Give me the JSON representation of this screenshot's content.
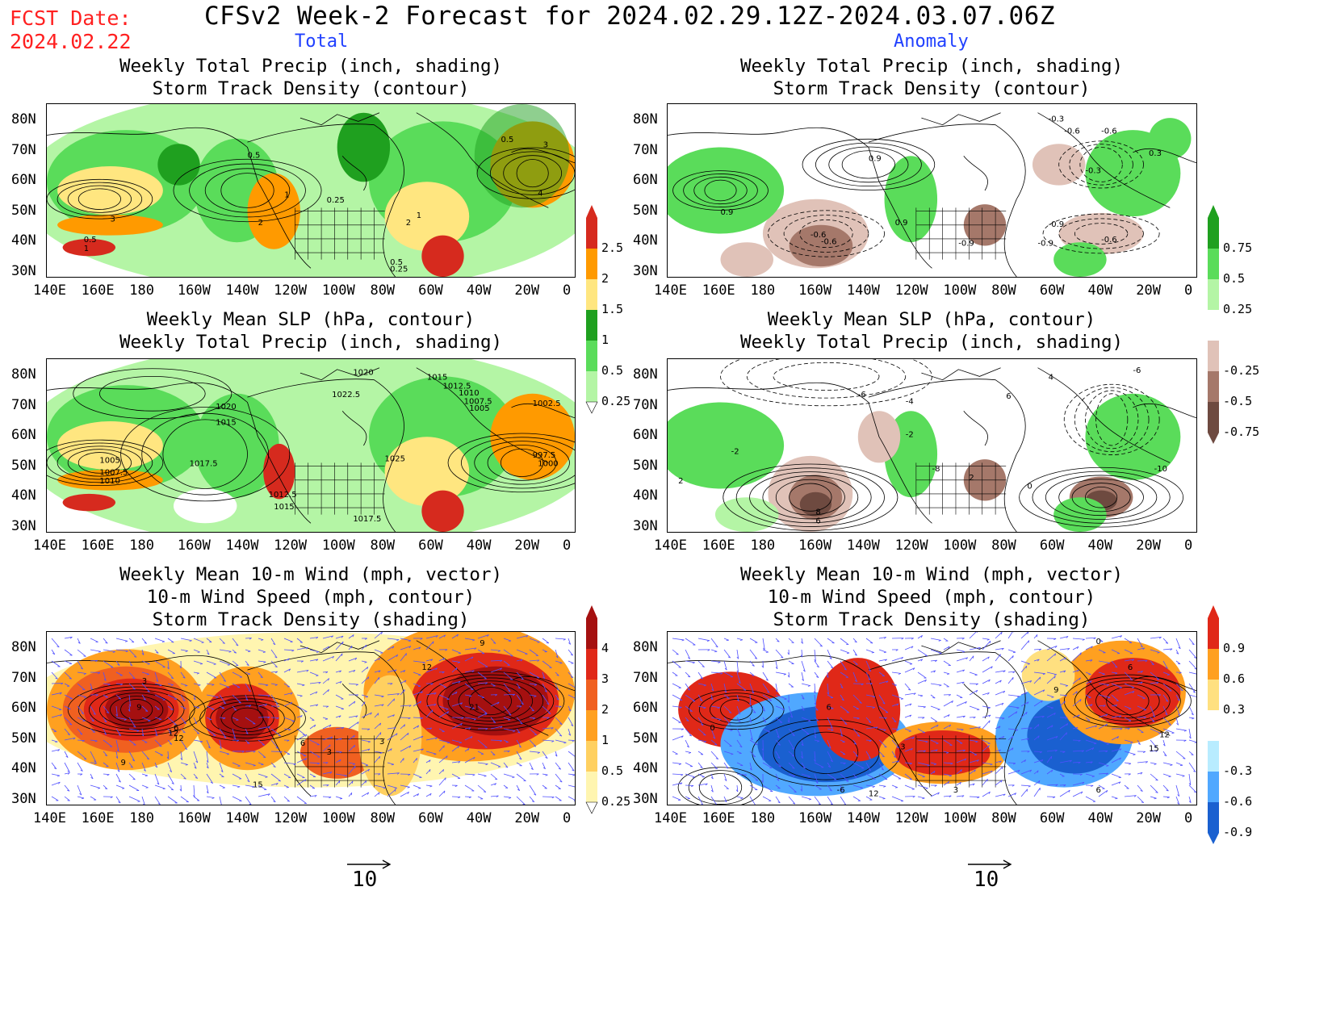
{
  "header": {
    "fcst_label": "FCST Date:",
    "fcst_date": "2024.02.22",
    "title": "CFSv2 Week-2 Forecast for 2024.02.29.12Z-2024.03.07.06Z",
    "left_column": "Total",
    "right_column": "Anomaly"
  },
  "axes": {
    "lon_labels": [
      "140E",
      "160E",
      "180",
      "160W",
      "140W",
      "120W",
      "100W",
      "80W",
      "60W",
      "40W",
      "20W",
      "0"
    ],
    "lat_labels": [
      "80N",
      "70N",
      "60N",
      "50N",
      "40N",
      "30N"
    ]
  },
  "panels": {
    "p1": {
      "l1": "Weekly Total Precip (inch, shading)",
      "l2": "Storm Track Density (contour)"
    },
    "p2": {
      "l1": "Weekly Total Precip (inch, shading)",
      "l2": "Storm Track Density (contour)"
    },
    "p3": {
      "l1": "Weekly Mean SLP (hPa, contour)",
      "l2": "Weekly Total Precip (inch, shading)"
    },
    "p4": {
      "l1": "Weekly Mean SLP (hPa, contour)",
      "l2": "Weekly Total Precip (inch, shading)"
    },
    "p5": {
      "l1": "Weekly Mean 10-m Wind (mph, vector)",
      "l2": "10-m Wind Speed (mph, contour)",
      "l3": "Storm Track Density (shading)"
    },
    "p6": {
      "l1": "Weekly Mean 10-m Wind (mph, vector)",
      "l2": "10-m Wind Speed (mph, contour)",
      "l3": "Storm Track Density (shading)"
    }
  },
  "colorbars": {
    "precip_total": {
      "labels": [
        "2.5",
        "2",
        "1.5",
        "1",
        "0.5",
        "0.25"
      ],
      "colors": [
        "#d62a1e",
        "#ff9a00",
        "#ffe680",
        "#1fa01f",
        "#5adc5a",
        "#b4f5a5"
      ]
    },
    "precip_anom": {
      "labels": [
        "0.75",
        "0.5",
        "0.25",
        "-0.25",
        "-0.5",
        "-0.75"
      ],
      "colors": [
        "#1fa01f",
        "#5adc5a",
        "#b4f5a5",
        "#ffffff",
        "#e0c2b8",
        "#a5786a",
        "#6e4a40"
      ]
    },
    "storm_total": {
      "labels": [
        "4",
        "3",
        "2",
        "1",
        "0.5",
        "0.25"
      ],
      "colors": [
        "#a51010",
        "#e02818",
        "#f06020",
        "#ffa020",
        "#ffd060",
        "#fff5b0"
      ]
    },
    "storm_anom": {
      "labels": [
        "0.9",
        "0.6",
        "0.3",
        "-0.3",
        "-0.6",
        "-0.9"
      ],
      "colors": [
        "#e02818",
        "#ffa020",
        "#ffe080",
        "#ffffff",
        "#b8ecff",
        "#50a8ff",
        "#1a60d0"
      ]
    }
  },
  "contour_labels": {
    "p1": [
      "0.5",
      "1",
      "2",
      "3",
      "0.25",
      "0.5",
      "1",
      "2",
      "3",
      "4",
      "0.5",
      "0.25",
      "1",
      "0.5"
    ],
    "p2": [
      "-0.3",
      "-0.6",
      "-0.9",
      "-0.3",
      "-0.6",
      "0.9",
      "-0.6",
      "-0.6",
      "-0.9",
      "0.3",
      "0.9",
      "-0.9",
      "-0.6",
      "0.9"
    ],
    "p3": [
      "1020",
      "1022.5",
      "1015",
      "1012.5",
      "1010",
      "1007.5",
      "1005",
      "1002.5",
      "1020",
      "1015",
      "1005",
      "1007.5",
      "1010",
      "1017.5",
      "1012.5",
      "1015",
      "1025",
      "1017.5",
      "1000",
      "997.5"
    ],
    "p4": [
      "-6",
      "-4",
      "-2",
      "2",
      "4",
      "6",
      "-6",
      "-8",
      "-10",
      "8",
      "6",
      "2",
      "-2",
      "0"
    ],
    "p5": [
      "9",
      "12",
      "9",
      "6",
      "3",
      "12",
      "6",
      "3",
      "9",
      "15",
      "3",
      "21",
      "12"
    ],
    "p6": [
      "0",
      "6",
      "9",
      "-6",
      "12",
      "0",
      "6",
      "3",
      "12",
      "15",
      "6",
      "3"
    ]
  },
  "reference_vector": {
    "value": "10"
  }
}
